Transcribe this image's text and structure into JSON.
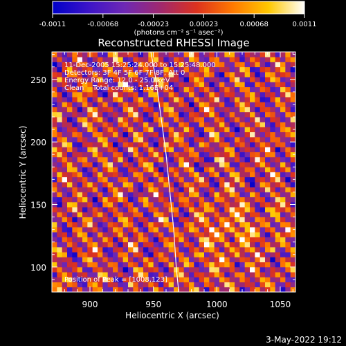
{
  "colorbar": {
    "tick_labels": [
      "-0.0011",
      "-0.00068",
      "-0.00023",
      "0.00023",
      "0.00068",
      "0.0011"
    ],
    "unit_label": "(photons cm⁻² s⁻¹ asec⁻²)",
    "min": -0.0011,
    "max": 0.0011,
    "colormap": [
      "#0000c8",
      "#3c14c8",
      "#6e28b4",
      "#a0286e",
      "#dc321e",
      "#ff7800",
      "#ffc800",
      "#ffffff"
    ]
  },
  "chart_data": {
    "type": "heatmap",
    "title": "Reconstructed RHESSI Image",
    "xlabel": "Heliocentric X (arcsec)",
    "ylabel": "Heliocentric Y (arcsec)",
    "xlim": [
      870,
      1062
    ],
    "ylim": [
      80,
      272
    ],
    "x_ticks": [
      900,
      950,
      1000,
      1050
    ],
    "y_ticks": [
      100,
      150,
      200,
      250
    ],
    "grid": false,
    "value_range": [
      -0.0011,
      0.0011
    ],
    "pixel_size_arcsec": 4,
    "annotations": [
      "11-Dec-2005 15:25:24.000 to 15:25:48.000",
      "Detectors: 3F 4F 5F 6F 7F 8F, Att 0",
      "Energy Range: 12.0 - 25.0 keV",
      "Clean    Total counts: 1.16E+04"
    ],
    "peak_label": "Position of Peak = [1008,123]",
    "peak_position": [
      1008,
      123
    ],
    "limb_curve": [
      [
        948,
        272
      ],
      [
        952,
        250
      ],
      [
        956,
        220
      ],
      [
        960,
        190
      ],
      [
        963,
        160
      ],
      [
        966,
        130
      ],
      [
        968,
        100
      ],
      [
        970,
        80
      ]
    ]
  },
  "footer": {
    "date": "3-May-2022 19:12"
  }
}
